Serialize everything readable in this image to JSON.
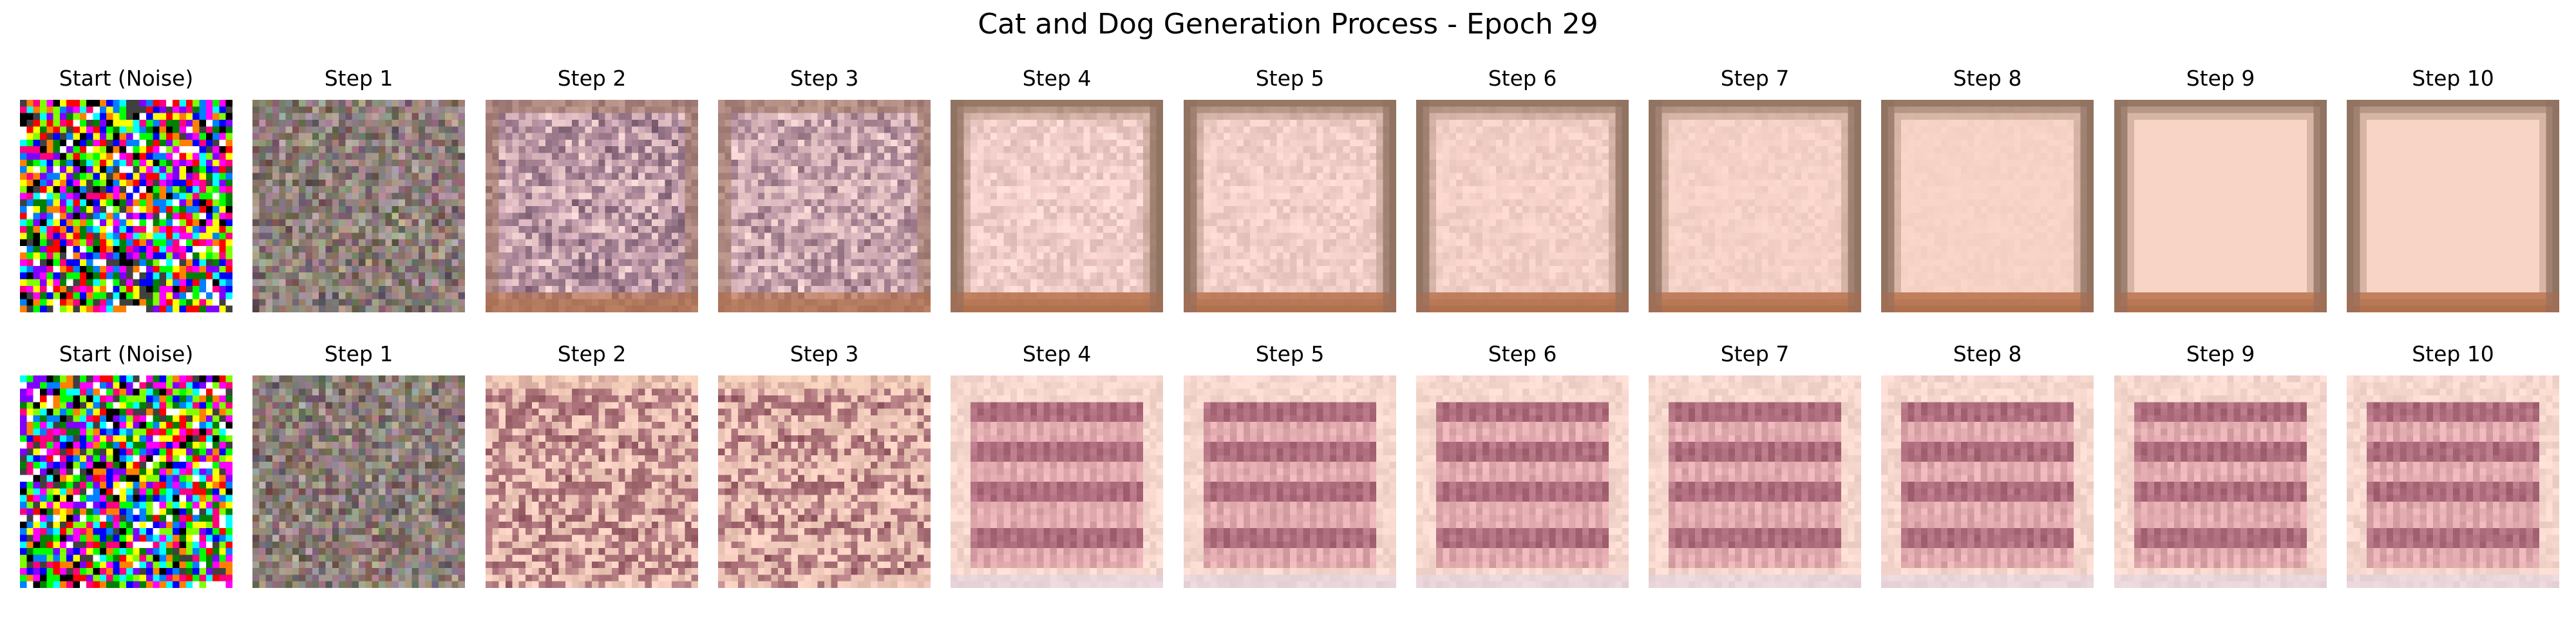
{
  "figure": {
    "title": "Cat and Dog Generation Process - Epoch 29"
  },
  "rows": [
    {
      "panels": [
        {
          "title": "Start (Noise)",
          "image": "random-color-noise"
        },
        {
          "title": "Step 1",
          "image": "grey-noisy-texture"
        },
        {
          "title": "Step 2",
          "image": "pink-blotchy-texture"
        },
        {
          "title": "Step 3",
          "image": "pink-blotchy-texture"
        },
        {
          "title": "Step 4",
          "image": "pale-pink-square-brown-border"
        },
        {
          "title": "Step 5",
          "image": "pale-pink-square-brown-border"
        },
        {
          "title": "Step 6",
          "image": "pale-pink-square-brown-border"
        },
        {
          "title": "Step 7",
          "image": "pale-pink-square-brown-border"
        },
        {
          "title": "Step 8",
          "image": "pale-pink-square-brown-border"
        },
        {
          "title": "Step 9",
          "image": "pale-pink-square-brown-border"
        },
        {
          "title": "Step 10",
          "image": "pale-pink-square-brown-border"
        }
      ]
    },
    {
      "panels": [
        {
          "title": "Start (Noise)",
          "image": "random-color-noise"
        },
        {
          "title": "Step 1",
          "image": "grey-noisy-texture"
        },
        {
          "title": "Step 2",
          "image": "pink-brown-patterned-texture"
        },
        {
          "title": "Step 3",
          "image": "pink-brown-patterned-texture"
        },
        {
          "title": "Step 4",
          "image": "pink-striped-texture"
        },
        {
          "title": "Step 5",
          "image": "pink-striped-texture"
        },
        {
          "title": "Step 6",
          "image": "pink-striped-texture"
        },
        {
          "title": "Step 7",
          "image": "pink-striped-texture"
        },
        {
          "title": "Step 8",
          "image": "pink-striped-texture"
        },
        {
          "title": "Step 9",
          "image": "pink-striped-texture"
        },
        {
          "title": "Step 10",
          "image": "pink-striped-texture"
        }
      ]
    }
  ]
}
